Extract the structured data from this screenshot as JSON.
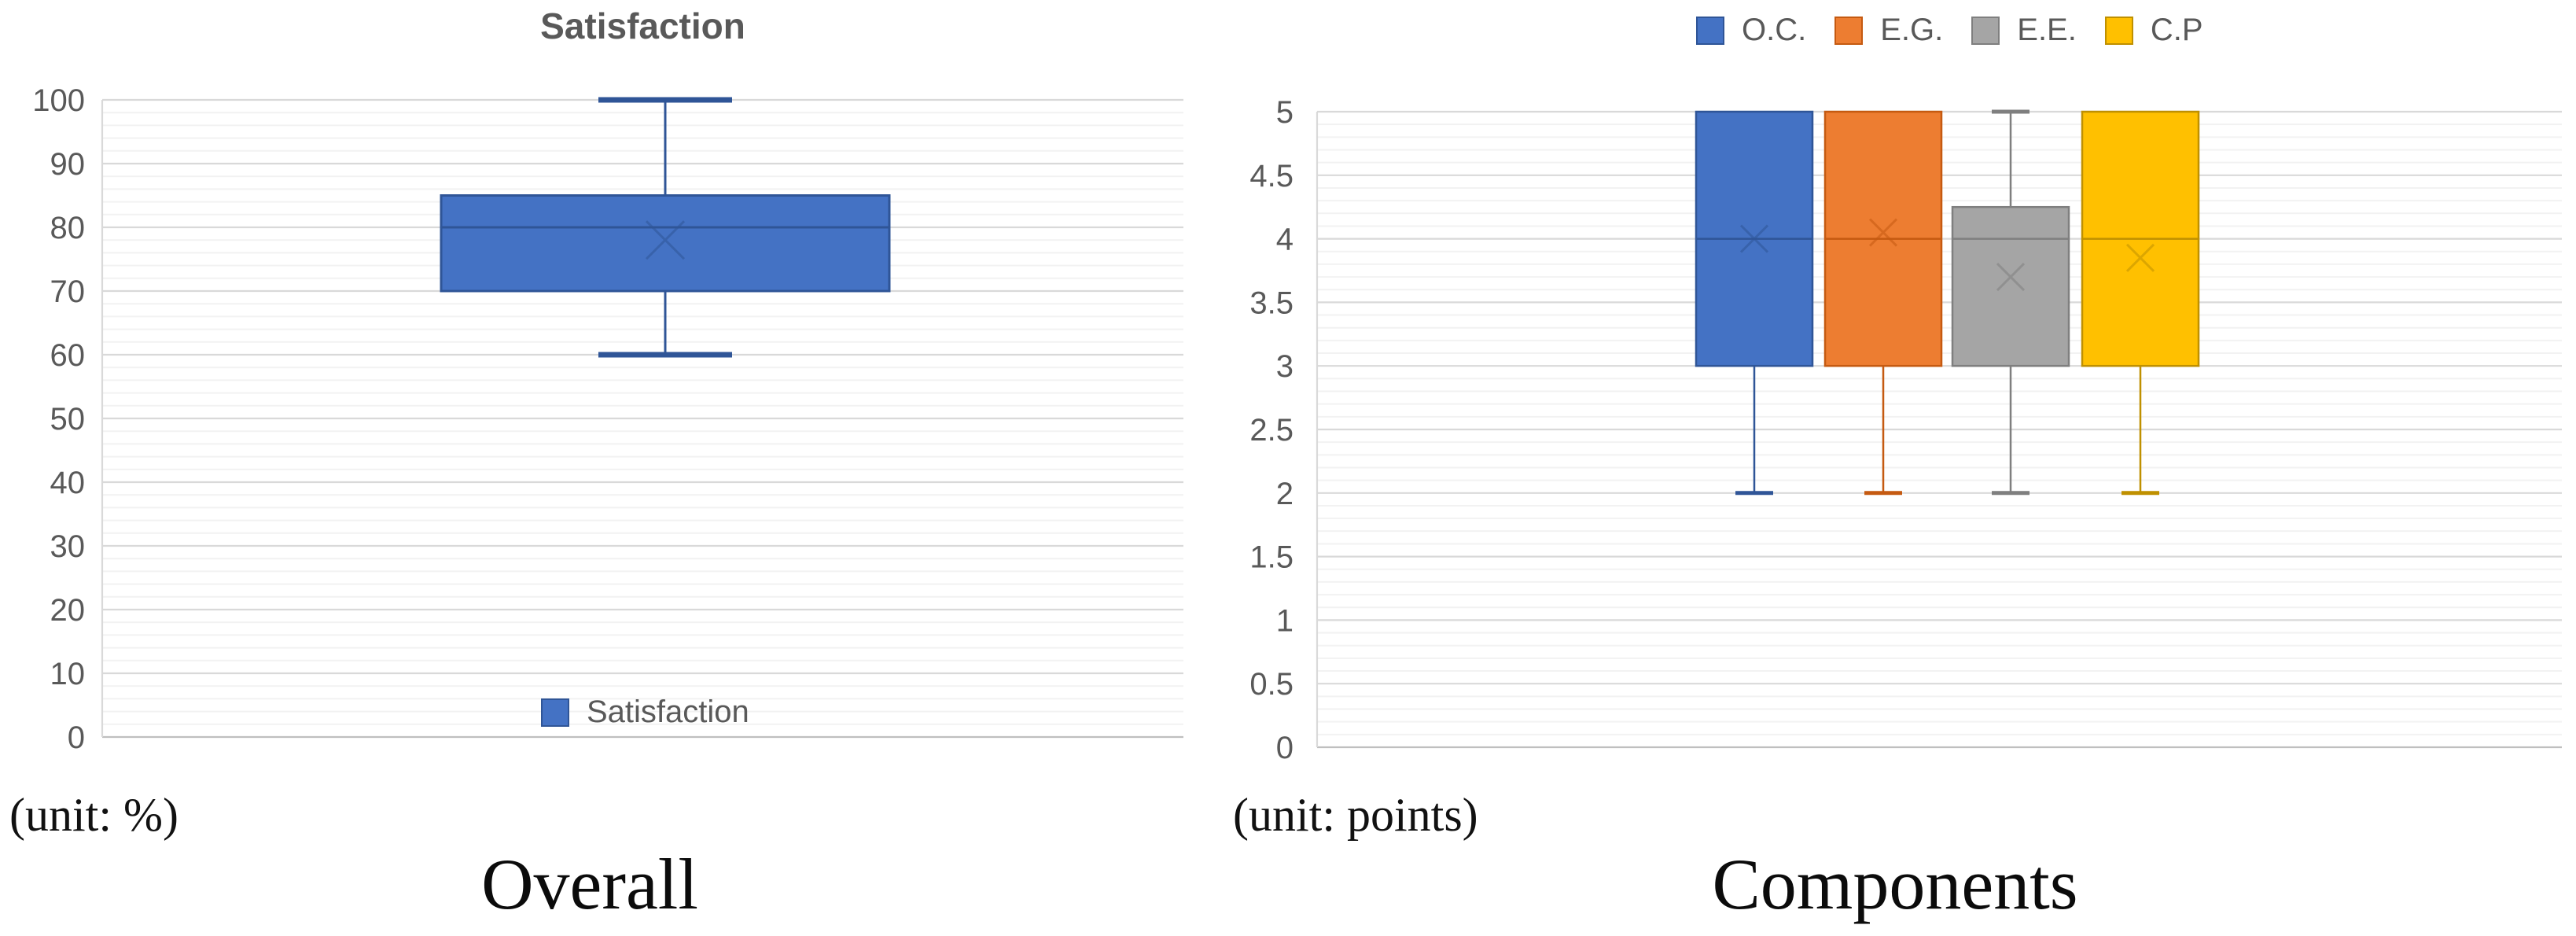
{
  "page": {
    "background": "#FFFFFF",
    "axis_text_color": "#595959",
    "major_grid_color": "#D9D9D9",
    "minor_grid_color": "#F2F2F2",
    "baseline_color": "#BFBFBF"
  },
  "chart_data": [
    {
      "type": "boxplot",
      "title": "Satisfaction",
      "unit_note": "(unit: %)",
      "caption": "Overall",
      "ylim": [
        0,
        100
      ],
      "y_major_step": 10,
      "y_minor_step": 2,
      "grid": true,
      "legend_position": "bottom-inside",
      "legend_entries": [
        "Satisfaction"
      ],
      "series": [
        {
          "name": "Satisfaction",
          "fill": "#4472C4",
          "border": "#2F5597",
          "whisker_low": 60,
          "q1": 70,
          "median": 80,
          "q3": 85,
          "whisker_high": 100,
          "mean": 78
        }
      ]
    },
    {
      "type": "boxplot",
      "title": "",
      "unit_note": "(unit: points)",
      "caption": "Components",
      "ylim": [
        0,
        5
      ],
      "y_major_step": 0.5,
      "y_minor_step": 0.1,
      "grid": true,
      "legend_position": "top",
      "legend_entries": [
        "O.C.",
        "E.G.",
        "E.E.",
        "C.P"
      ],
      "series": [
        {
          "name": "O.C.",
          "fill": "#4472C4",
          "border": "#2F5597",
          "whisker_low": 2,
          "q1": 3,
          "median": 4,
          "q3": 5,
          "whisker_high": 5,
          "mean": 4.0
        },
        {
          "name": "E.G.",
          "fill": "#ED7D31",
          "border": "#C55A11",
          "whisker_low": 2,
          "q1": 3,
          "median": 4,
          "q3": 5,
          "whisker_high": 5,
          "mean": 4.05
        },
        {
          "name": "E.E.",
          "fill": "#A5A5A5",
          "border": "#7F7F7F",
          "whisker_low": 2,
          "q1": 3,
          "median": 4,
          "q3": 4.25,
          "whisker_high": 5,
          "mean": 3.7
        },
        {
          "name": "C.P",
          "fill": "#FFC000",
          "border": "#BF9000",
          "whisker_low": 2,
          "q1": 3,
          "median": 4,
          "q3": 5,
          "whisker_high": 5,
          "mean": 3.85
        }
      ]
    }
  ]
}
